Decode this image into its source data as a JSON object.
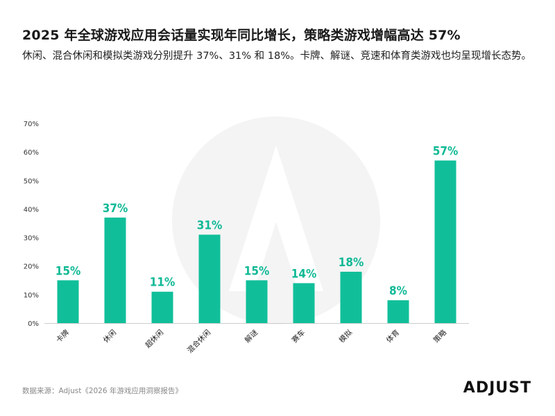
{
  "header": {
    "title": "2025 年全球游戏应用会话量实现年同比增长，策略类游戏增幅高达 57%",
    "subtitle": "休闲、混合休闲和模拟类游戏分别提升 37%、31% 和 18%。卡牌、解谜、竞速和体育类游戏也均呈现增长态势。"
  },
  "footer": {
    "source": "数据来源：Adjust《2026 年游戏应用洞察报告》",
    "logo_text": "ADJUST"
  },
  "colors": {
    "bar": "#10bf9a",
    "label": "#10b996",
    "axis": "#cccccc",
    "watermark": "#f3f3f3"
  },
  "chart_data": {
    "type": "bar",
    "categories": [
      "卡牌",
      "休闲",
      "超休闲",
      "混合休闲",
      "解谜",
      "赛车",
      "模拟",
      "体育",
      "策略"
    ],
    "values": [
      15,
      37,
      11,
      31,
      15,
      14,
      18,
      8,
      57
    ],
    "data_labels": [
      "15%",
      "37%",
      "11%",
      "31%",
      "15%",
      "14%",
      "18%",
      "8%",
      "57%"
    ],
    "yticks": [
      "0%",
      "10%",
      "20%",
      "30%",
      "40%",
      "50%",
      "60%",
      "70%"
    ],
    "ylim": [
      0,
      70
    ],
    "grid": false,
    "unit": "%"
  }
}
